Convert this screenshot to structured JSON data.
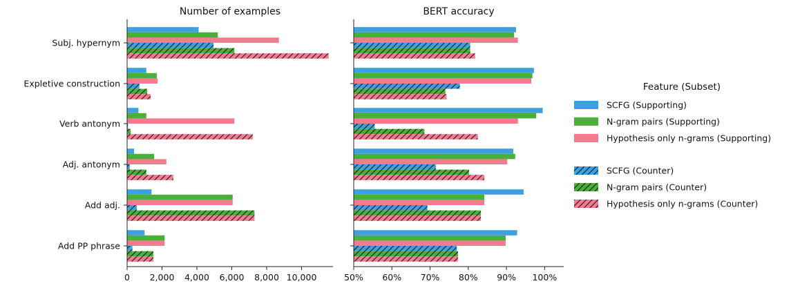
{
  "colors": {
    "SCFG": "#3fa0e0",
    "N-gram pairs": "#4caf3a",
    "Hypothesis only n-grams": "#f47a8f"
  },
  "chart_data": [
    {
      "type": "bar",
      "orientation": "horizontal",
      "title": "Number of examples",
      "categories": [
        "Subj. hypernym",
        "Expletive construction",
        "Verb antonym",
        "Adj. antonym",
        "Add adj.",
        "Add PP phrase"
      ],
      "xlim": [
        0,
        11800
      ],
      "xticks": [
        0,
        2000,
        4000,
        6000,
        8000,
        10000
      ],
      "xtick_labels": [
        "0",
        "2,000",
        "4,000",
        "6,000",
        "8,000",
        "10,000"
      ],
      "series": [
        {
          "name": "SCFG (Supporting)",
          "feature": "SCFG",
          "subset": "Supporting",
          "values": [
            4100,
            1100,
            650,
            400,
            1400,
            1000
          ]
        },
        {
          "name": "N-gram pairs (Supporting)",
          "feature": "N-gram pairs",
          "subset": "Supporting",
          "values": [
            5200,
            1700,
            1100,
            1550,
            6050,
            2150
          ]
        },
        {
          "name": "Hypothesis only n-grams (Supporting)",
          "feature": "Hypothesis only n-grams",
          "subset": "Supporting",
          "values": [
            8700,
            1750,
            6150,
            2250,
            6050,
            2150
          ]
        },
        {
          "name": "SCFG (Counter)",
          "feature": "SCFG",
          "subset": "Counter",
          "values": [
            4950,
            700,
            50,
            150,
            550,
            300
          ]
        },
        {
          "name": "N-gram pairs (Counter)",
          "feature": "N-gram pairs",
          "subset": "Counter",
          "values": [
            6150,
            1150,
            200,
            1100,
            7300,
            1500
          ]
        },
        {
          "name": "Hypothesis only n-grams (Counter)",
          "feature": "Hypothesis only n-grams",
          "subset": "Counter",
          "values": [
            11550,
            1350,
            7200,
            2650,
            7300,
            1500
          ]
        }
      ]
    },
    {
      "type": "bar",
      "orientation": "horizontal",
      "title": "BERT accuracy",
      "categories": [
        "Subj. hypernym",
        "Expletive construction",
        "Verb antonym",
        "Adj. antonym",
        "Add adj.",
        "Add PP phrase"
      ],
      "xlim": [
        50,
        105
      ],
      "xticks": [
        50,
        60,
        70,
        80,
        90,
        100
      ],
      "xtick_labels": [
        "50%",
        "60%",
        "70%",
        "80%",
        "90%",
        "100%"
      ],
      "series": [
        {
          "name": "SCFG (Supporting)",
          "feature": "SCFG",
          "subset": "Supporting",
          "values": [
            92.5,
            97.2,
            99.5,
            91.8,
            94.5,
            92.8
          ]
        },
        {
          "name": "N-gram pairs (Supporting)",
          "feature": "N-gram pairs",
          "subset": "Supporting",
          "values": [
            92.0,
            96.8,
            97.8,
            92.3,
            84.2,
            89.8
          ]
        },
        {
          "name": "Hypothesis only n-grams (Supporting)",
          "feature": "Hypothesis only n-grams",
          "subset": "Supporting",
          "values": [
            93.0,
            96.5,
            93.0,
            90.2,
            84.2,
            89.8
          ]
        },
        {
          "name": "SCFG (Counter)",
          "feature": "SCFG",
          "subset": "Counter",
          "values": [
            80.5,
            77.8,
            55.5,
            71.5,
            69.3,
            77.0
          ]
        },
        {
          "name": "N-gram pairs (Counter)",
          "feature": "N-gram pairs",
          "subset": "Counter",
          "values": [
            80.5,
            74.0,
            68.5,
            80.2,
            83.3,
            77.3
          ]
        },
        {
          "name": "Hypothesis only n-grams (Counter)",
          "feature": "Hypothesis only n-grams",
          "subset": "Counter",
          "values": [
            81.8,
            74.3,
            82.5,
            84.2,
            83.3,
            77.3
          ]
        }
      ]
    }
  ],
  "legend": {
    "title": "Feature (Subset)",
    "placement": "right",
    "groups": [
      [
        {
          "label": "SCFG (Supporting)",
          "feature": "SCFG",
          "hatched": false
        },
        {
          "label": "N-gram pairs (Supporting)",
          "feature": "N-gram pairs",
          "hatched": false
        },
        {
          "label": "Hypothesis only n-grams (Supporting)",
          "feature": "Hypothesis only n-grams",
          "hatched": false
        }
      ],
      [
        {
          "label": "SCFG (Counter)",
          "feature": "SCFG",
          "hatched": true
        },
        {
          "label": "N-gram pairs (Counter)",
          "feature": "N-gram pairs",
          "hatched": true
        },
        {
          "label": "Hypothesis only n-grams (Counter)",
          "feature": "Hypothesis only n-grams",
          "hatched": true
        }
      ]
    ]
  }
}
